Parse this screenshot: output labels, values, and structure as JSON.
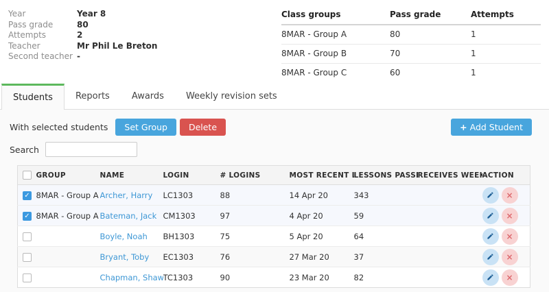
{
  "colors": {
    "tab_accent_green": "#5cb85c",
    "primary_button_blue": "#48a5dd",
    "delete_button_red": "#d9534f",
    "link_blue": "#3d97d5",
    "selected_row_blue": "#f6f8fd"
  },
  "icons": {
    "check": "✓",
    "close": "×",
    "plus": "+",
    "edit": "pencil"
  },
  "class_info": {
    "fields": [
      {
        "label": "Year",
        "value": "Year 8"
      },
      {
        "label": "Pass grade",
        "value": "80"
      },
      {
        "label": "Attempts",
        "value": "2"
      },
      {
        "label": "Teacher",
        "value": "Mr Phil Le Breton"
      },
      {
        "label": "Second teacher",
        "value": "-"
      }
    ]
  },
  "class_groups": {
    "headers": [
      "Class groups",
      "Pass grade",
      "Attempts"
    ],
    "rows": [
      {
        "group": "8MAR - Group A",
        "pass_grade": "80",
        "attempts": "1"
      },
      {
        "group": "8MAR - Group B",
        "pass_grade": "70",
        "attempts": "1"
      },
      {
        "group": "8MAR - Group C",
        "pass_grade": "60",
        "attempts": "1"
      }
    ]
  },
  "tabs": [
    {
      "label": "Students",
      "active": true
    },
    {
      "label": "Reports",
      "active": false
    },
    {
      "label": "Awards",
      "active": false
    },
    {
      "label": "Weekly revision sets",
      "active": false
    }
  ],
  "toolbar": {
    "with_selected_label": "With selected students",
    "set_group_label": "Set Group",
    "delete_label": "Delete",
    "add_student_label": "Add Student"
  },
  "search": {
    "label": "Search",
    "value": "",
    "placeholder": ""
  },
  "students_table": {
    "headers": [
      "GROUP",
      "NAME",
      "LOGIN",
      "# LOGINS",
      "MOST RECENT L...",
      "LESSONS PASSED",
      "RECEIVES WEEKL...",
      "ACTION"
    ],
    "rows": [
      {
        "checked": true,
        "group": "8MAR - Group A",
        "name": "Archer, Harry",
        "login": "LC1303",
        "num_logins": "88",
        "most_recent_login": "14 Apr 20",
        "lessons_passed": "343",
        "receives_weekly": ""
      },
      {
        "checked": true,
        "group": "8MAR - Group A",
        "name": "Bateman, Jack",
        "login": "CM1303",
        "num_logins": "97",
        "most_recent_login": "4 Apr 20",
        "lessons_passed": "59",
        "receives_weekly": ""
      },
      {
        "checked": false,
        "group": "",
        "name": "Boyle, Noah",
        "login": "BH1303",
        "num_logins": "75",
        "most_recent_login": "5 Apr 20",
        "lessons_passed": "64",
        "receives_weekly": ""
      },
      {
        "checked": false,
        "group": "",
        "name": "Bryant, Toby",
        "login": "EC1303",
        "num_logins": "76",
        "most_recent_login": "27 Mar 20",
        "lessons_passed": "37",
        "receives_weekly": ""
      },
      {
        "checked": false,
        "group": "",
        "name": "Chapman, Shawn",
        "login": "TC1303",
        "num_logins": "90",
        "most_recent_login": "23 Mar 20",
        "lessons_passed": "82",
        "receives_weekly": ""
      }
    ]
  }
}
